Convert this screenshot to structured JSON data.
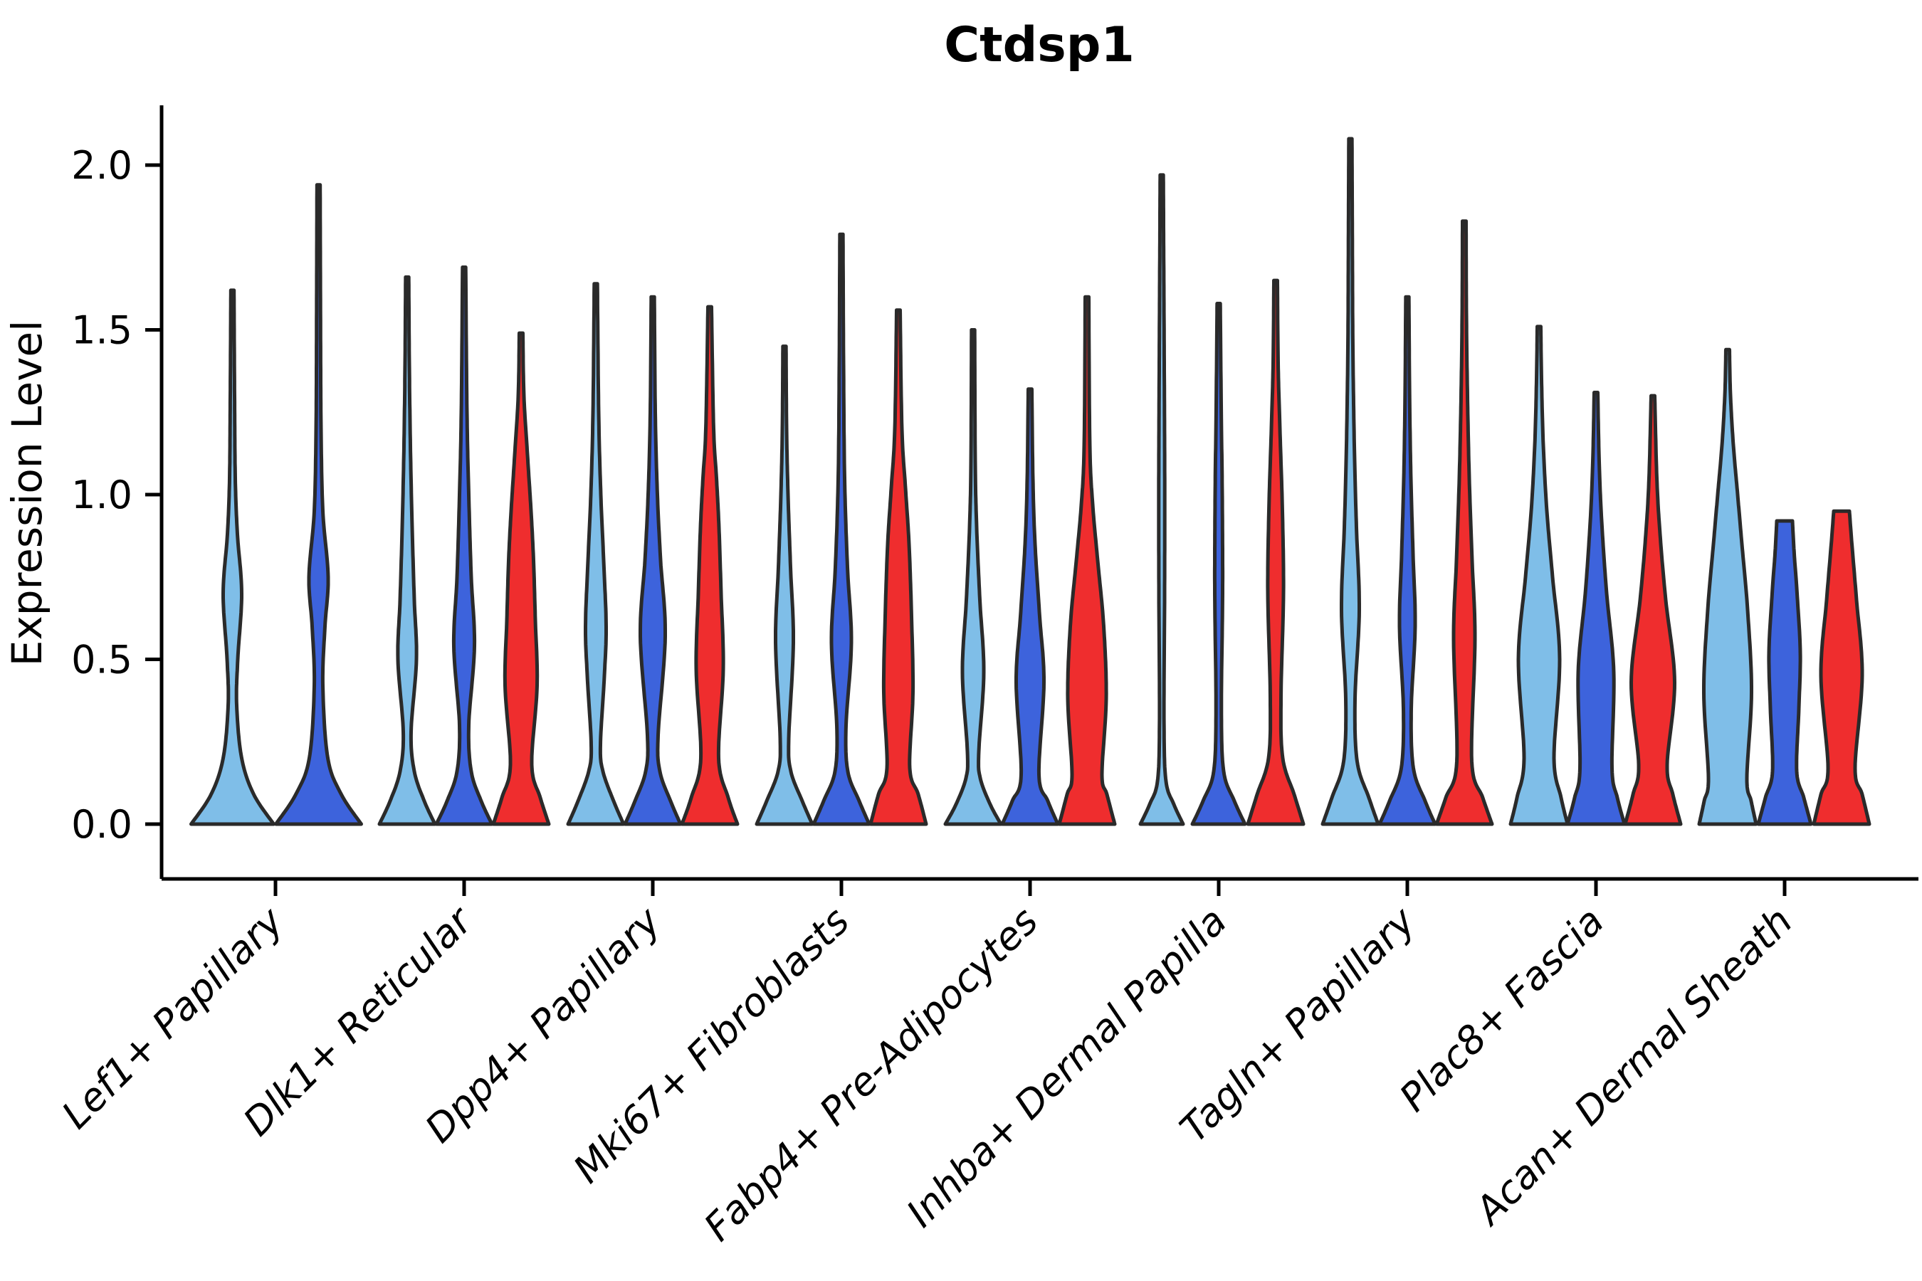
{
  "chart": {
    "title": "Ctdsp1",
    "ylabel": "Expression Level"
  },
  "chart_data": {
    "type": "violin",
    "title": "Ctdsp1",
    "xlabel": "",
    "ylabel": "Expression Level",
    "ylim": [
      -0.17,
      2.18
    ],
    "yticks": [
      "0.0",
      "0.5",
      "1.0",
      "1.5",
      "2.0"
    ],
    "ytick_values": [
      0.0,
      0.5,
      1.0,
      1.5,
      2.0
    ],
    "grid": false,
    "legend": "none",
    "categories": [
      "Lef1+ Papillary",
      "Dlk1+ Reticular",
      "Dpp4+ Papillary",
      "Mki67+ Fibroblasts",
      "Fabp4+ Pre-Adipocytes",
      "Inhba+ Dermal Papilla",
      "Tagln+ Papillary",
      "Plac8+ Fascia",
      "Acan+ Dermal Sheath"
    ],
    "split_colors": {
      "light_blue": "#7FBEE8",
      "royal_blue": "#3D63DC",
      "red": "#EF2D2E"
    },
    "outline_color": "#2a2a2a",
    "violins": [
      {
        "category_index": 0,
        "split": "light_blue",
        "max_expression": 1.62,
        "profile": [
          [
            0,
            58
          ],
          [
            0.09,
            30
          ],
          [
            0.2,
            13
          ],
          [
            0.36,
            6
          ],
          [
            0.5,
            7.5
          ],
          [
            0.7,
            13
          ],
          [
            0.88,
            7
          ],
          [
            1.05,
            4
          ],
          [
            1.3,
            3
          ],
          [
            1.62,
            2.2
          ]
        ]
      },
      {
        "category_index": 0,
        "split": "royal_blue",
        "max_expression": 1.94,
        "profile": [
          [
            0,
            60
          ],
          [
            0.09,
            32
          ],
          [
            0.2,
            13
          ],
          [
            0.42,
            6
          ],
          [
            0.6,
            9
          ],
          [
            0.75,
            13.5
          ],
          [
            0.95,
            6
          ],
          [
            1.2,
            3.5
          ],
          [
            1.5,
            2.8
          ],
          [
            1.94,
            2.2
          ]
        ]
      },
      {
        "category_index": 1,
        "split": "light_blue",
        "max_expression": 1.66,
        "profile": [
          [
            0,
            39
          ],
          [
            0.07,
            24
          ],
          [
            0.16,
            10
          ],
          [
            0.28,
            5.5
          ],
          [
            0.5,
            13
          ],
          [
            0.68,
            10
          ],
          [
            0.9,
            7
          ],
          [
            1.15,
            4.5
          ],
          [
            1.4,
            3
          ],
          [
            1.66,
            2.2
          ]
        ]
      },
      {
        "category_index": 1,
        "split": "royal_blue",
        "max_expression": 1.69,
        "profile": [
          [
            0,
            39
          ],
          [
            0.07,
            24
          ],
          [
            0.16,
            10
          ],
          [
            0.3,
            6.5
          ],
          [
            0.54,
            14.5
          ],
          [
            0.75,
            10
          ],
          [
            1.0,
            6.5
          ],
          [
            1.25,
            4
          ],
          [
            1.69,
            2.2
          ]
        ]
      },
      {
        "category_index": 1,
        "split": "red",
        "max_expression": 1.49,
        "profile": [
          [
            0,
            39
          ],
          [
            0.08,
            27
          ],
          [
            0.18,
            15
          ],
          [
            0.42,
            22.5
          ],
          [
            0.62,
            20
          ],
          [
            0.8,
            17.5
          ],
          [
            0.95,
            14
          ],
          [
            1.12,
            9
          ],
          [
            1.3,
            4
          ],
          [
            1.49,
            2.5
          ]
        ]
      },
      {
        "category_index": 2,
        "split": "light_blue",
        "max_expression": 1.64,
        "profile": [
          [
            0,
            39
          ],
          [
            0.07,
            25
          ],
          [
            0.16,
            10
          ],
          [
            0.24,
            6.5
          ],
          [
            0.45,
            12
          ],
          [
            0.6,
            14.5
          ],
          [
            0.8,
            11
          ],
          [
            1.0,
            7
          ],
          [
            1.25,
            4
          ],
          [
            1.64,
            2.2
          ]
        ]
      },
      {
        "category_index": 2,
        "split": "royal_blue",
        "max_expression": 1.6,
        "profile": [
          [
            0,
            39
          ],
          [
            0.07,
            25
          ],
          [
            0.16,
            10
          ],
          [
            0.27,
            7.5
          ],
          [
            0.57,
            17.5
          ],
          [
            0.8,
            11
          ],
          [
            1.0,
            6.5
          ],
          [
            1.25,
            3.5
          ],
          [
            1.6,
            2.2
          ]
        ]
      },
      {
        "category_index": 2,
        "split": "red",
        "max_expression": 1.57,
        "profile": [
          [
            0,
            39
          ],
          [
            0.08,
            26
          ],
          [
            0.2,
            12.5
          ],
          [
            0.47,
            19
          ],
          [
            0.7,
            16
          ],
          [
            0.9,
            13
          ],
          [
            1.05,
            9.5
          ],
          [
            1.2,
            5.5
          ],
          [
            1.57,
            2.5
          ]
        ]
      },
      {
        "category_index": 3,
        "split": "light_blue",
        "max_expression": 1.45,
        "profile": [
          [
            0,
            39
          ],
          [
            0.07,
            25
          ],
          [
            0.16,
            9
          ],
          [
            0.26,
            6
          ],
          [
            0.55,
            12.5
          ],
          [
            0.78,
            8.5
          ],
          [
            1.0,
            5
          ],
          [
            1.2,
            3
          ],
          [
            1.45,
            2.2
          ]
        ]
      },
      {
        "category_index": 3,
        "split": "royal_blue",
        "max_expression": 1.79,
        "profile": [
          [
            0,
            39
          ],
          [
            0.07,
            25
          ],
          [
            0.16,
            9
          ],
          [
            0.3,
            6.5
          ],
          [
            0.55,
            14
          ],
          [
            0.78,
            8.5
          ],
          [
            1.05,
            4.5
          ],
          [
            1.4,
            3
          ],
          [
            1.79,
            2.2
          ]
        ]
      },
      {
        "category_index": 3,
        "split": "red",
        "max_expression": 1.56,
        "profile": [
          [
            0,
            39
          ],
          [
            0.09,
            28
          ],
          [
            0.17,
            16
          ],
          [
            0.4,
            20.5
          ],
          [
            0.63,
            18.5
          ],
          [
            0.85,
            15
          ],
          [
            1.02,
            10
          ],
          [
            1.2,
            5
          ],
          [
            1.56,
            2.5
          ]
        ]
      },
      {
        "category_index": 4,
        "split": "light_blue",
        "max_expression": 1.5,
        "profile": [
          [
            0,
            39
          ],
          [
            0.06,
            24
          ],
          [
            0.14,
            10
          ],
          [
            0.22,
            8
          ],
          [
            0.46,
            15
          ],
          [
            0.68,
            9.5
          ],
          [
            0.9,
            5
          ],
          [
            1.1,
            3
          ],
          [
            1.5,
            2.2
          ]
        ]
      },
      {
        "category_index": 4,
        "split": "royal_blue",
        "max_expression": 1.32,
        "profile": [
          [
            0,
            39
          ],
          [
            0.07,
            25
          ],
          [
            0.15,
            12.5
          ],
          [
            0.43,
            19.5
          ],
          [
            0.63,
            13.5
          ],
          [
            0.85,
            7
          ],
          [
            1.05,
            4
          ],
          [
            1.32,
            2.5
          ]
        ]
      },
      {
        "category_index": 4,
        "split": "red",
        "max_expression": 1.6,
        "profile": [
          [
            0,
            39
          ],
          [
            0.09,
            28
          ],
          [
            0.15,
            21
          ],
          [
            0.38,
            27
          ],
          [
            0.6,
            23.5
          ],
          [
            0.8,
            15
          ],
          [
            0.97,
            8
          ],
          [
            1.15,
            4
          ],
          [
            1.6,
            2.5
          ]
        ]
      },
      {
        "category_index": 5,
        "split": "light_blue",
        "max_expression": 1.97,
        "profile": [
          [
            0,
            30
          ],
          [
            0.06,
            17
          ],
          [
            0.13,
            6
          ],
          [
            0.3,
            3.2
          ],
          [
            0.7,
            4
          ],
          [
            1.0,
            4.2
          ],
          [
            1.35,
            3.6
          ],
          [
            1.7,
            2.8
          ],
          [
            1.97,
            2.2
          ]
        ]
      },
      {
        "category_index": 5,
        "split": "royal_blue",
        "max_expression": 1.58,
        "profile": [
          [
            0,
            37
          ],
          [
            0.07,
            22
          ],
          [
            0.16,
            7
          ],
          [
            0.35,
            3.8
          ],
          [
            0.7,
            5.5
          ],
          [
            1.0,
            5
          ],
          [
            1.25,
            3.6
          ],
          [
            1.58,
            2.2
          ]
        ]
      },
      {
        "category_index": 5,
        "split": "red",
        "max_expression": 1.65,
        "profile": [
          [
            0,
            39
          ],
          [
            0.09,
            26
          ],
          [
            0.2,
            10
          ],
          [
            0.38,
            7.5
          ],
          [
            0.7,
            11
          ],
          [
            0.95,
            9.5
          ],
          [
            1.2,
            6
          ],
          [
            1.4,
            3.5
          ],
          [
            1.65,
            2.5
          ]
        ]
      },
      {
        "category_index": 6,
        "split": "light_blue",
        "max_expression": 2.08,
        "profile": [
          [
            0,
            39
          ],
          [
            0.08,
            26
          ],
          [
            0.19,
            9.5
          ],
          [
            0.38,
            6.5
          ],
          [
            0.65,
            12.5
          ],
          [
            0.9,
            8.5
          ],
          [
            1.15,
            5.5
          ],
          [
            1.45,
            3.5
          ],
          [
            1.75,
            2.8
          ],
          [
            2.08,
            2.2
          ]
        ]
      },
      {
        "category_index": 6,
        "split": "royal_blue",
        "max_expression": 1.6,
        "profile": [
          [
            0,
            39
          ],
          [
            0.07,
            25
          ],
          [
            0.17,
            8.5
          ],
          [
            0.35,
            5.5
          ],
          [
            0.6,
            11
          ],
          [
            0.82,
            8
          ],
          [
            1.05,
            5
          ],
          [
            1.3,
            3.2
          ],
          [
            1.6,
            2.2
          ]
        ]
      },
      {
        "category_index": 6,
        "split": "red",
        "max_expression": 1.83,
        "profile": [
          [
            0,
            39
          ],
          [
            0.08,
            26
          ],
          [
            0.19,
            10.5
          ],
          [
            0.56,
            15
          ],
          [
            0.8,
            11
          ],
          [
            1.05,
            7
          ],
          [
            1.3,
            4.5
          ],
          [
            1.55,
            3
          ],
          [
            1.83,
            2.5
          ]
        ]
      },
      {
        "category_index": 7,
        "split": "light_blue",
        "max_expression": 1.51,
        "profile": [
          [
            0,
            40
          ],
          [
            0.08,
            31
          ],
          [
            0.2,
            21
          ],
          [
            0.5,
            29
          ],
          [
            0.75,
            19
          ],
          [
            0.95,
            11
          ],
          [
            1.15,
            6
          ],
          [
            1.35,
            3.5
          ],
          [
            1.51,
            2.5
          ]
        ]
      },
      {
        "category_index": 7,
        "split": "royal_blue",
        "max_expression": 1.31,
        "profile": [
          [
            0,
            40
          ],
          [
            0.08,
            30
          ],
          [
            0.17,
            22.5
          ],
          [
            0.46,
            25
          ],
          [
            0.7,
            15
          ],
          [
            0.92,
            8
          ],
          [
            1.1,
            4.5
          ],
          [
            1.31,
            2.5
          ]
        ]
      },
      {
        "category_index": 7,
        "split": "red",
        "max_expression": 1.3,
        "profile": [
          [
            0,
            39
          ],
          [
            0.09,
            28
          ],
          [
            0.18,
            20
          ],
          [
            0.43,
            30.5
          ],
          [
            0.68,
            18
          ],
          [
            0.88,
            10
          ],
          [
            1.05,
            5.5
          ],
          [
            1.3,
            2.5
          ]
        ]
      },
      {
        "category_index": 8,
        "split": "light_blue",
        "max_expression": 1.44,
        "profile": [
          [
            0,
            40
          ],
          [
            0.07,
            33
          ],
          [
            0.14,
            27
          ],
          [
            0.4,
            33.5
          ],
          [
            0.65,
            28
          ],
          [
            0.85,
            20
          ],
          [
            1.0,
            14
          ],
          [
            1.15,
            8
          ],
          [
            1.3,
            4
          ],
          [
            1.44,
            2.5
          ]
        ]
      },
      {
        "category_index": 8,
        "split": "royal_blue",
        "max_expression": 0.92,
        "capped": true,
        "profile": [
          [
            0,
            37
          ],
          [
            0.08,
            27
          ],
          [
            0.16,
            17
          ],
          [
            0.35,
            20
          ],
          [
            0.52,
            22
          ],
          [
            0.7,
            17.5
          ],
          [
            0.82,
            13.5
          ],
          [
            0.92,
            11
          ]
        ]
      },
      {
        "category_index": 8,
        "split": "red",
        "max_expression": 0.95,
        "capped": true,
        "profile": [
          [
            0,
            39
          ],
          [
            0.09,
            29
          ],
          [
            0.17,
            19
          ],
          [
            0.45,
            29
          ],
          [
            0.68,
            21
          ],
          [
            0.85,
            14.5
          ],
          [
            0.95,
            11
          ]
        ]
      }
    ]
  }
}
